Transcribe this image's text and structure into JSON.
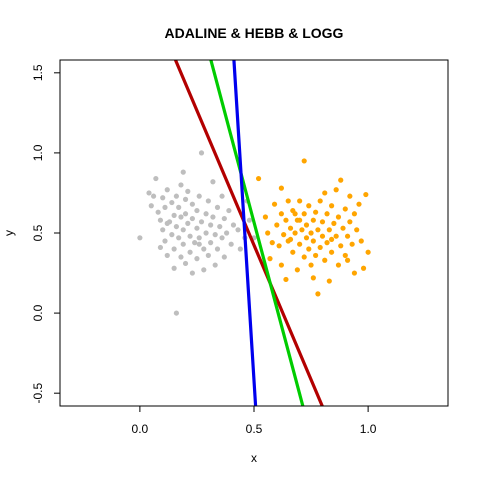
{
  "chart_data": {
    "type": "scatter",
    "title": "ADALINE & HEBB & LOGG",
    "xlabel": "x",
    "ylabel": "y",
    "xlim": [
      -0.35,
      1.35
    ],
    "ylim": [
      -0.58,
      1.58
    ],
    "x_ticks": [
      0.0,
      0.5,
      1.0
    ],
    "x_tick_labels": [
      "0.0",
      "0.5",
      "1.0"
    ],
    "y_ticks": [
      -0.5,
      0.0,
      0.5,
      1.0,
      1.5
    ],
    "y_tick_labels": [
      "-0.5",
      "0.0",
      "0.5",
      "1.0",
      "1.5"
    ],
    "grid": false,
    "series": [
      {
        "color": "#bebebe",
        "points": [
          [
            0.0,
            0.47
          ],
          [
            0.04,
            0.75
          ],
          [
            0.06,
            0.73
          ],
          [
            0.07,
            0.84
          ],
          [
            0.08,
            0.63
          ],
          [
            0.09,
            0.58
          ],
          [
            0.09,
            0.41
          ],
          [
            0.1,
            0.72
          ],
          [
            0.1,
            0.52
          ],
          [
            0.11,
            0.66
          ],
          [
            0.11,
            0.45
          ],
          [
            0.12,
            0.77
          ],
          [
            0.12,
            0.36
          ],
          [
            0.13,
            0.57
          ],
          [
            0.14,
            0.69
          ],
          [
            0.14,
            0.49
          ],
          [
            0.15,
            0.61
          ],
          [
            0.15,
            0.4
          ],
          [
            0.15,
            0.28
          ],
          [
            0.16,
            0.73
          ],
          [
            0.16,
            0.54
          ],
          [
            0.16,
            0.0
          ],
          [
            0.17,
            0.66
          ],
          [
            0.17,
            0.47
          ],
          [
            0.18,
            0.8
          ],
          [
            0.18,
            0.6
          ],
          [
            0.18,
            0.35
          ],
          [
            0.19,
            0.52
          ],
          [
            0.19,
            0.43
          ],
          [
            0.2,
            0.71
          ],
          [
            0.2,
            0.62
          ],
          [
            0.2,
            0.31
          ],
          [
            0.21,
            0.76
          ],
          [
            0.21,
            0.56
          ],
          [
            0.22,
            0.48
          ],
          [
            0.22,
            0.38
          ],
          [
            0.23,
            0.68
          ],
          [
            0.23,
            0.59
          ],
          [
            0.23,
            0.25
          ],
          [
            0.24,
            0.44
          ],
          [
            0.25,
            0.64
          ],
          [
            0.25,
            0.53
          ],
          [
            0.25,
            0.34
          ],
          [
            0.26,
            0.73
          ],
          [
            0.26,
            0.47
          ],
          [
            0.27,
            1.0
          ],
          [
            0.27,
            0.57
          ],
          [
            0.28,
            0.4
          ],
          [
            0.28,
            0.27
          ],
          [
            0.29,
            0.62
          ],
          [
            0.29,
            0.5
          ],
          [
            0.3,
            0.7
          ],
          [
            0.3,
            0.36
          ],
          [
            0.31,
            0.55
          ],
          [
            0.31,
            0.44
          ],
          [
            0.32,
            0.82
          ],
          [
            0.32,
            0.6
          ],
          [
            0.33,
            0.49
          ],
          [
            0.33,
            0.3
          ],
          [
            0.34,
            0.66
          ],
          [
            0.34,
            0.4
          ],
          [
            0.35,
            0.54
          ],
          [
            0.36,
            0.73
          ],
          [
            0.36,
            0.47
          ],
          [
            0.37,
            0.59
          ],
          [
            0.37,
            0.35
          ],
          [
            0.38,
            0.5
          ],
          [
            0.39,
            0.64
          ],
          [
            0.4,
            0.43
          ],
          [
            0.41,
            0.55
          ],
          [
            0.43,
            0.52
          ],
          [
            0.44,
            0.4
          ],
          [
            0.46,
            0.47
          ],
          [
            0.47,
            0.7
          ],
          [
            0.48,
            0.58
          ],
          [
            0.5,
            0.47
          ],
          [
            0.19,
            0.88
          ],
          [
            0.05,
            0.67
          ],
          [
            0.12,
            0.56
          ],
          [
            0.26,
            0.43
          ]
        ]
      },
      {
        "color": "#ffa500",
        "points": [
          [
            0.52,
            0.84
          ],
          [
            0.55,
            0.6
          ],
          [
            0.56,
            0.5
          ],
          [
            0.57,
            0.34
          ],
          [
            0.58,
            0.44
          ],
          [
            0.59,
            0.68
          ],
          [
            0.6,
            0.55
          ],
          [
            0.61,
            0.42
          ],
          [
            0.62,
            0.3
          ],
          [
            0.62,
            0.62
          ],
          [
            0.63,
            0.49
          ],
          [
            0.64,
            0.58
          ],
          [
            0.64,
            0.21
          ],
          [
            0.65,
            0.7
          ],
          [
            0.65,
            0.45
          ],
          [
            0.66,
            0.53
          ],
          [
            0.67,
            0.38
          ],
          [
            0.67,
            0.64
          ],
          [
            0.68,
            0.5
          ],
          [
            0.69,
            0.58
          ],
          [
            0.69,
            0.27
          ],
          [
            0.7,
            0.43
          ],
          [
            0.7,
            0.7
          ],
          [
            0.71,
            0.52
          ],
          [
            0.72,
            0.35
          ],
          [
            0.72,
            0.62
          ],
          [
            0.72,
            0.95
          ],
          [
            0.73,
            0.47
          ],
          [
            0.73,
            0.55
          ],
          [
            0.74,
            0.4
          ],
          [
            0.74,
            0.67
          ],
          [
            0.75,
            0.3
          ],
          [
            0.75,
            0.5
          ],
          [
            0.76,
            0.58
          ],
          [
            0.76,
            0.45
          ],
          [
            0.77,
            0.36
          ],
          [
            0.77,
            0.63
          ],
          [
            0.78,
            0.52
          ],
          [
            0.78,
            0.12
          ],
          [
            0.79,
            0.41
          ],
          [
            0.79,
            0.7
          ],
          [
            0.8,
            0.48
          ],
          [
            0.8,
            0.57
          ],
          [
            0.81,
            0.33
          ],
          [
            0.82,
            0.62
          ],
          [
            0.82,
            0.44
          ],
          [
            0.83,
            0.52
          ],
          [
            0.83,
            0.2
          ],
          [
            0.84,
            0.67
          ],
          [
            0.84,
            0.38
          ],
          [
            0.85,
            0.56
          ],
          [
            0.86,
            0.48
          ],
          [
            0.86,
            0.77
          ],
          [
            0.87,
            0.6
          ],
          [
            0.87,
            0.3
          ],
          [
            0.88,
            0.42
          ],
          [
            0.88,
            0.83
          ],
          [
            0.89,
            0.53
          ],
          [
            0.9,
            0.65
          ],
          [
            0.9,
            0.36
          ],
          [
            0.91,
            0.48
          ],
          [
            0.92,
            0.57
          ],
          [
            0.92,
            0.73
          ],
          [
            0.93,
            0.43
          ],
          [
            0.94,
            0.62
          ],
          [
            0.94,
            0.25
          ],
          [
            0.95,
            0.52
          ],
          [
            0.96,
            0.68
          ],
          [
            0.97,
            0.45
          ],
          [
            0.98,
            0.28
          ],
          [
            0.99,
            0.74
          ],
          [
            1.0,
            0.38
          ],
          [
            0.62,
            0.78
          ],
          [
            0.68,
            0.62
          ],
          [
            0.81,
            0.75
          ],
          [
            0.76,
            0.22
          ],
          [
            0.7,
            0.58
          ],
          [
            0.84,
            0.46
          ],
          [
            0.66,
            0.46
          ],
          [
            0.91,
            0.33
          ]
        ]
      }
    ],
    "lines": [
      {
        "color": "#b30000",
        "points": [
          [
            0.156,
            1.58
          ],
          [
            0.799,
            -0.58
          ]
        ]
      },
      {
        "color": "#00cc00",
        "points": [
          [
            0.311,
            1.58
          ],
          [
            0.714,
            -0.58
          ]
        ]
      },
      {
        "color": "#0000ee",
        "points": [
          [
            0.412,
            1.58
          ],
          [
            0.507,
            -0.58
          ]
        ]
      }
    ]
  }
}
